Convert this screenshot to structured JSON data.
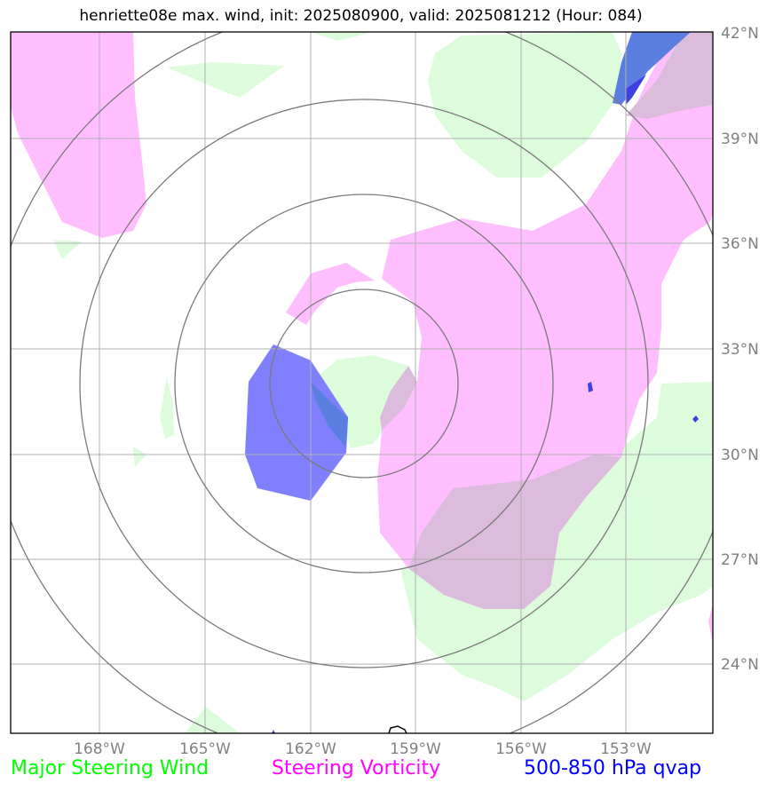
{
  "title": "henriette08e max. wind, init: 2025080900, valid: 2025081212 (Hour: 084)",
  "lon_ticks": [
    "168°W",
    "165°W",
    "162°W",
    "159°W",
    "156°W",
    "153°W"
  ],
  "lat_ticks": [
    "42°N",
    "39°N",
    "36°N",
    "33°N",
    "30°N",
    "27°N",
    "24°N"
  ],
  "legend": [
    {
      "label": "Major Steering Wind",
      "color": "#00ff00"
    },
    {
      "label": "Steering Vorticity",
      "color": "#ff00ff"
    },
    {
      "label": "500-850 hPa qvap",
      "color": "#0000ff"
    }
  ],
  "colors": {
    "wind_fill": "#dcfcdc",
    "vorticity_fill": "#ffbfff",
    "overlap_fill": "#dcbcdc",
    "qvap_fill": "#8080ff",
    "qvap_dark": "#5b7fe0",
    "range_rings": "#7a7a7a",
    "grid": "#b0b0b0"
  },
  "icons": [
    "coastline-island-icon"
  ]
}
